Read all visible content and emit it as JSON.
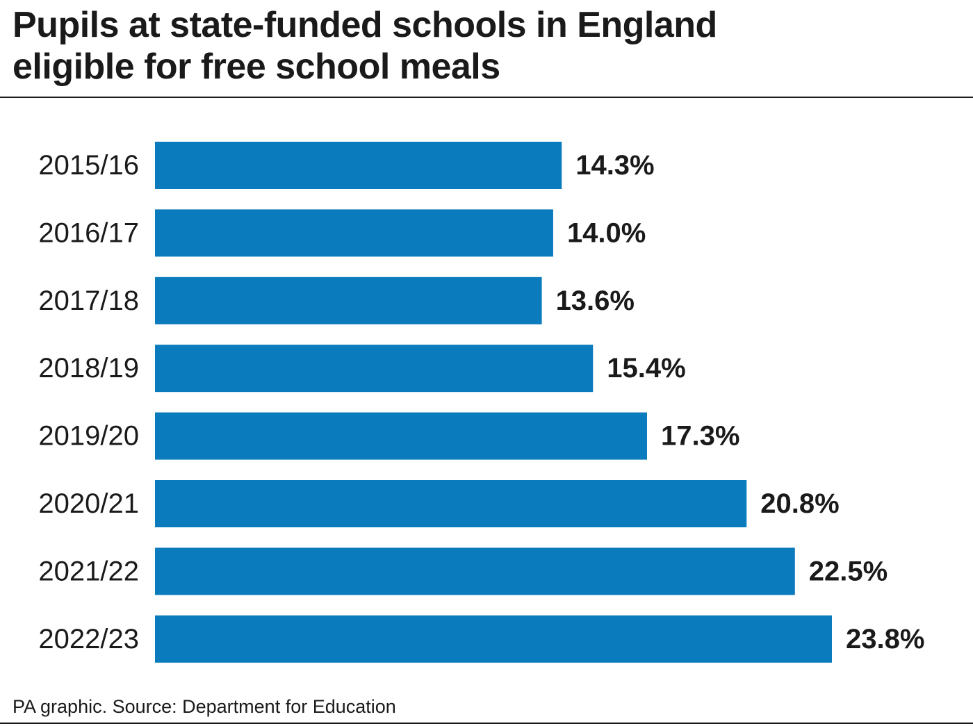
{
  "header": {
    "title_line1": "Pupils at state-funded schools in England",
    "title_line2": "eligible for free school meals"
  },
  "footer": {
    "source": "PA graphic. Source: Department for Education"
  },
  "colors": {
    "bar": "#0a7bbd",
    "text": "#1a1a1a"
  },
  "chart_data": {
    "type": "bar",
    "orientation": "horizontal",
    "title": "Pupils at state-funded schools in England eligible for free school meals",
    "xlabel": "",
    "ylabel": "",
    "grid": false,
    "categories": [
      "2015/16",
      "2016/17",
      "2017/18",
      "2018/19",
      "2019/20",
      "2020/21",
      "2021/22",
      "2022/23"
    ],
    "values": [
      14.3,
      14.0,
      13.6,
      15.4,
      17.3,
      20.8,
      22.5,
      23.8
    ],
    "value_labels": [
      "14.3%",
      "14.0%",
      "13.6%",
      "15.4%",
      "17.3%",
      "20.8%",
      "22.5%",
      "23.8%"
    ],
    "xlim": [
      0,
      23.8
    ]
  }
}
